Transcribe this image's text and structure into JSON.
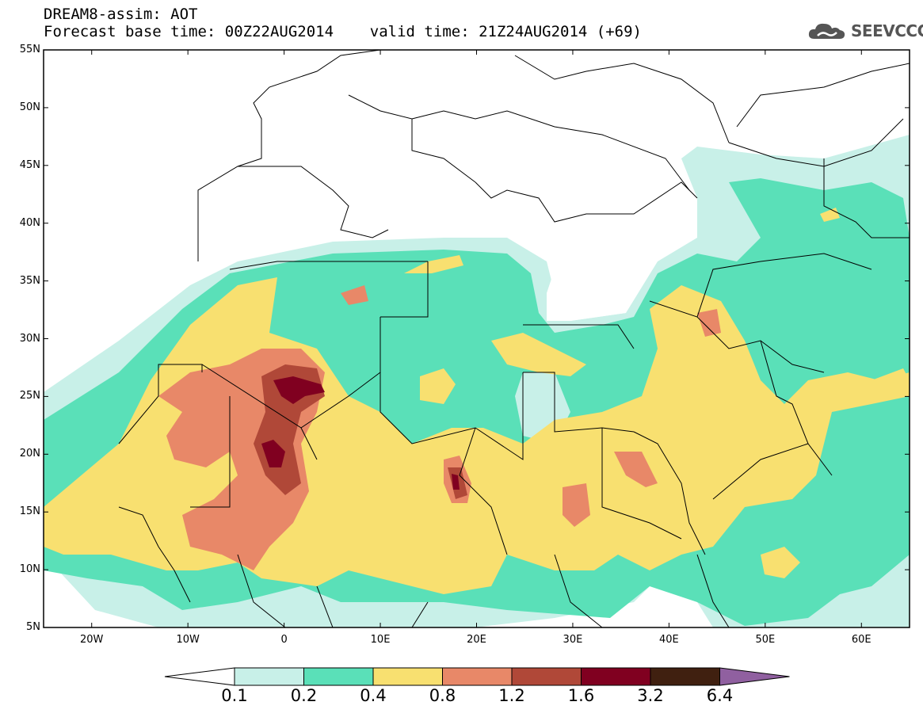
{
  "title": {
    "line1": "DREAM8-assim: AOT",
    "line2": "Forecast base time: 00Z22AUG2014    valid time: 21Z24AUG2014 (+69)"
  },
  "logo": {
    "text": "SEEVCCC",
    "icon": "cloud-icon"
  },
  "map": {
    "lon_range": [
      -25,
      65
    ],
    "lat_range": [
      5,
      55
    ],
    "lat_ticks": [
      "5N",
      "10N",
      "15N",
      "20N",
      "25N",
      "30N",
      "35N",
      "40N",
      "45N",
      "50N",
      "55N"
    ],
    "lon_ticks": [
      "20W",
      "10W",
      "0",
      "10E",
      "20E",
      "30E",
      "40E",
      "50E",
      "60E"
    ]
  },
  "colorbar": {
    "labels": [
      "0.1",
      "0.2",
      "0.4",
      "0.8",
      "1.2",
      "1.6",
      "3.2",
      "6.4"
    ],
    "colors": [
      "#ffffff",
      "#c8f0e8",
      "#5ae0b8",
      "#f8e070",
      "#e88868",
      "#b04838",
      "#800020",
      "#402010",
      "#9060a0"
    ]
  }
}
